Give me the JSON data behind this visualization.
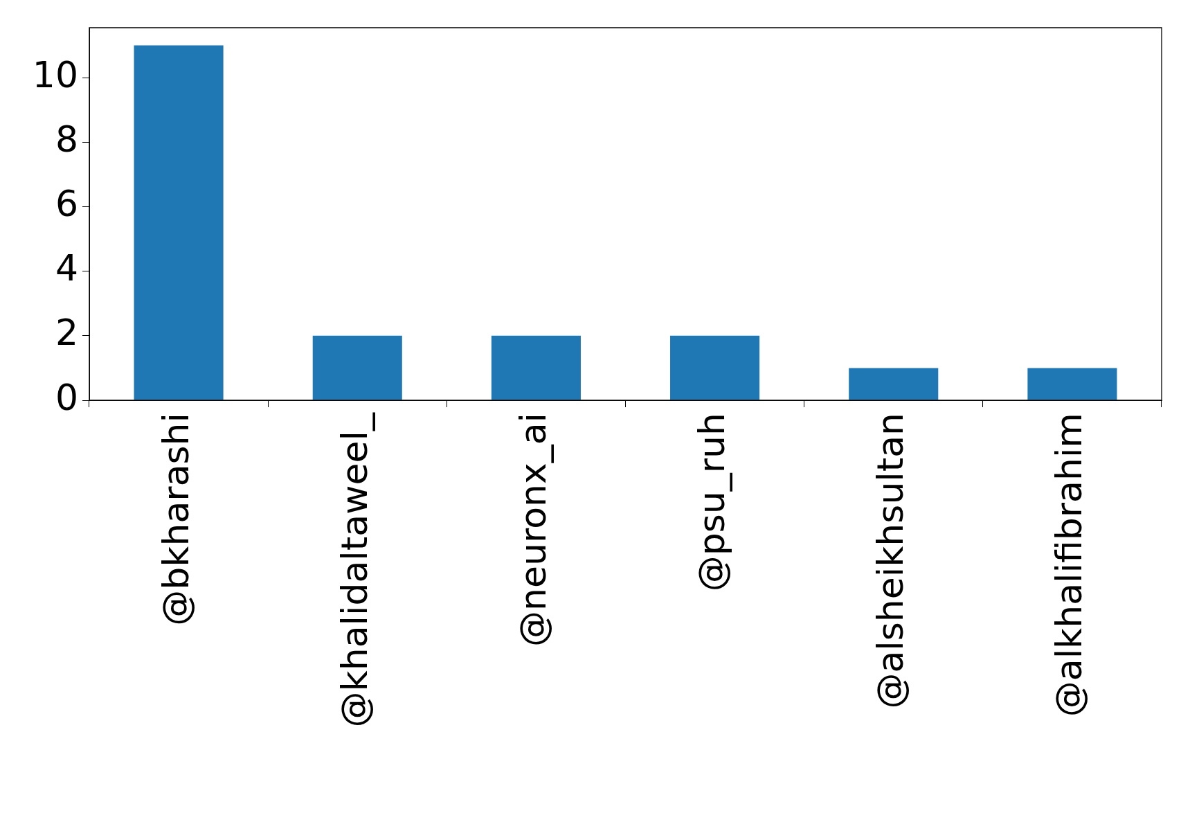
{
  "chart_data": {
    "type": "bar",
    "categories": [
      "@bkharashi",
      "@khalidaltaweel_",
      "@neuronx_ai",
      "@psu_ruh",
      "@alsheikhsultan",
      "@alkhalifibrahim"
    ],
    "values": [
      11,
      2,
      2,
      2,
      1,
      1
    ],
    "color": "#1f77b4",
    "ylim": [
      0,
      11.55
    ],
    "yticks": [
      0,
      2,
      4,
      6,
      8,
      10
    ],
    "grid": false,
    "legend": false
  }
}
